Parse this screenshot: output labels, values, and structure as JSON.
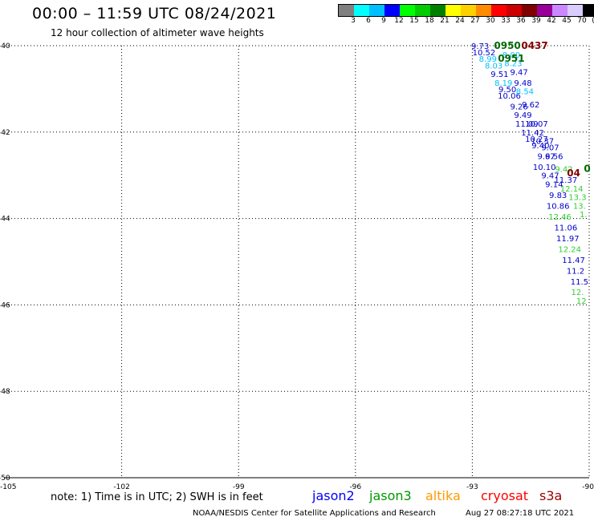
{
  "header": {
    "title": "00:00 – 11:59 UTC 08/24/2021",
    "subtitle": "12 hour collection of altimeter wave heights"
  },
  "legend": {
    "unit": "(ft)",
    "labels": [
      "3",
      "6",
      "9",
      "12",
      "15",
      "18",
      "21",
      "24",
      "27",
      "30",
      "33",
      "36",
      "39",
      "42",
      "45",
      "70"
    ],
    "colors": [
      "#808080",
      "#00ffff",
      "#00bfff",
      "#0000ff",
      "#00ff00",
      "#00cc00",
      "#008000",
      "#ffff00",
      "#ffd000",
      "#ff8c00",
      "#ff0000",
      "#cc0000",
      "#800000",
      "#990099",
      "#cc88ff",
      "#d9ccff",
      "#000000"
    ]
  },
  "map": {
    "lat_labels": [
      "-40",
      "-42",
      "-44",
      "-46",
      "-48",
      "-50"
    ],
    "lon_labels": [
      "-105",
      "-102",
      "-99",
      "-96",
      "-93",
      "-90"
    ],
    "lat_values": [
      -40,
      -42,
      -44,
      -46,
      -48,
      -50
    ],
    "lon_values": [
      -105,
      -102,
      -99,
      -96,
      -93,
      -90
    ],
    "extent": {
      "lon_min": -105,
      "lon_max": -90,
      "lat_min": -50,
      "lat_max": -40
    }
  },
  "points": [
    {
      "t": "9.73",
      "lon": -92.8,
      "lat": -40.0,
      "c": "#0000cc"
    },
    {
      "t": "10.52",
      "lon": -92.7,
      "lat": -40.15,
      "c": "#0000cc"
    },
    {
      "t": "8.99",
      "lon": -92.6,
      "lat": -40.3,
      "c": "#00bfff"
    },
    {
      "t": "8.03",
      "lon": -92.45,
      "lat": -40.45,
      "c": "#00bfff"
    },
    {
      "t": "9.51",
      "lon": -92.3,
      "lat": -40.65,
      "c": "#0000cc"
    },
    {
      "t": "8.19",
      "lon": -92.2,
      "lat": -40.85,
      "c": "#00bfff"
    },
    {
      "t": "9.50",
      "lon": -92.1,
      "lat": -41.0,
      "c": "#0000cc"
    },
    {
      "t": "10.06",
      "lon": -92.05,
      "lat": -41.15,
      "c": "#0000cc"
    },
    {
      "t": "9.26",
      "lon": -91.8,
      "lat": -41.4,
      "c": "#0000cc"
    },
    {
      "t": "9.49",
      "lon": -91.7,
      "lat": -41.6,
      "c": "#0000cc"
    },
    {
      "t": "11.09",
      "lon": -91.6,
      "lat": -41.8,
      "c": "#0000cc"
    },
    {
      "t": "11.42",
      "lon": -91.45,
      "lat": -42.0,
      "c": "#0000cc"
    },
    {
      "t": "10.27",
      "lon": -91.35,
      "lat": -42.15,
      "c": "#0000cc"
    },
    {
      "t": "9.40",
      "lon": -91.25,
      "lat": -42.3,
      "c": "#0000cc"
    },
    {
      "t": "9.67",
      "lon": -91.1,
      "lat": -42.55,
      "c": "#0000cc"
    },
    {
      "t": "10.10",
      "lon": -91.15,
      "lat": -42.8,
      "c": "#0000cc"
    },
    {
      "t": "9.47",
      "lon": -91.0,
      "lat": -43.0,
      "c": "#0000cc"
    },
    {
      "t": "9.14",
      "lon": -90.9,
      "lat": -43.2,
      "c": "#0000cc"
    },
    {
      "t": "9.83",
      "lon": -90.8,
      "lat": -43.45,
      "c": "#0000cc"
    },
    {
      "t": "10.86",
      "lon": -90.8,
      "lat": -43.7,
      "c": "#0000cc"
    },
    {
      "t": "12.46",
      "lon": -90.75,
      "lat": -43.95,
      "c": "#33cc33"
    },
    {
      "t": "11.06",
      "lon": -90.6,
      "lat": -44.2,
      "c": "#0000cc"
    },
    {
      "t": "11.97",
      "lon": -90.55,
      "lat": -44.45,
      "c": "#0000cc"
    },
    {
      "t": "12.24",
      "lon": -90.5,
      "lat": -44.7,
      "c": "#33cc33"
    },
    {
      "t": "11.47",
      "lon": -90.4,
      "lat": -44.95,
      "c": "#0000cc"
    },
    {
      "t": "11.2",
      "lon": -90.35,
      "lat": -45.2,
      "c": "#0000cc"
    },
    {
      "t": "11.5",
      "lon": -90.25,
      "lat": -45.45,
      "c": "#0000cc"
    },
    {
      "t": "12.",
      "lon": -90.3,
      "lat": -45.7,
      "c": "#33cc33"
    },
    {
      "t": "12",
      "lon": -90.2,
      "lat": -45.9,
      "c": "#33cc33"
    },
    {
      "t": "8.00",
      "lon": -92.0,
      "lat": -40.2,
      "c": "#00bfff"
    },
    {
      "t": "8.23",
      "lon": -91.95,
      "lat": -40.4,
      "c": "#00bfff"
    },
    {
      "t": "9.47",
      "lon": -91.8,
      "lat": -40.6,
      "c": "#0000cc"
    },
    {
      "t": "9.48",
      "lon": -91.7,
      "lat": -40.85,
      "c": "#0000cc"
    },
    {
      "t": "8.54",
      "lon": -91.65,
      "lat": -41.05,
      "c": "#00bfff"
    },
    {
      "t": "9.62",
      "lon": -91.5,
      "lat": -41.35,
      "c": "#0000cc"
    },
    {
      "t": "10.07",
      "lon": -91.35,
      "lat": -41.8,
      "c": "#0000cc"
    },
    {
      "t": "10.37",
      "lon": -91.2,
      "lat": -42.2,
      "c": "#0000cc"
    },
    {
      "t": "9.07",
      "lon": -91.0,
      "lat": -42.35,
      "c": "#0000cc"
    },
    {
      "t": "9.56",
      "lon": -90.9,
      "lat": -42.55,
      "c": "#0000cc"
    },
    {
      "t": "9.42",
      "lon": -90.65,
      "lat": -42.85,
      "c": "#33cc33"
    },
    {
      "t": "11.37",
      "lon": -90.6,
      "lat": -43.1,
      "c": "#0000cc"
    },
    {
      "t": "12.14",
      "lon": -90.45,
      "lat": -43.3,
      "c": "#33cc33"
    },
    {
      "t": "13.3",
      "lon": -90.3,
      "lat": -43.5,
      "c": "#33cc33"
    },
    {
      "t": "13.",
      "lon": -90.25,
      "lat": -43.7,
      "c": "#33cc33"
    },
    {
      "t": "1.",
      "lon": -90.15,
      "lat": -43.9,
      "c": "#33cc33"
    }
  ],
  "time_labels": [
    {
      "t": "0950",
      "lon": -92.1,
      "lat": -40.0,
      "c": "#006600"
    },
    {
      "t": "0437",
      "lon": -91.4,
      "lat": -40.0,
      "c": "#800000"
    },
    {
      "t": "0951",
      "lon": -92.0,
      "lat": -40.3,
      "c": "#006600"
    },
    {
      "t": "04",
      "lon": -90.4,
      "lat": -42.95,
      "c": "#800000"
    },
    {
      "t": "0",
      "lon": -90.05,
      "lat": -42.85,
      "c": "#006600"
    }
  ],
  "footer": {
    "note": "note:  1) Time is in UTC;  2) SWH is in feet",
    "satellites": [
      {
        "name": "jason2",
        "color": "#0000ff"
      },
      {
        "name": "jason3",
        "color": "#009900"
      },
      {
        "name": "altika",
        "color": "#ff9900"
      },
      {
        "name": "cryosat",
        "color": "#ff0000"
      },
      {
        "name": "s3a",
        "color": "#990000"
      }
    ],
    "credit": "NOAA/NESDIS Center for Satellite Applications and Research",
    "timestamp": "Aug 27 08:27:18 UTC 2021"
  }
}
